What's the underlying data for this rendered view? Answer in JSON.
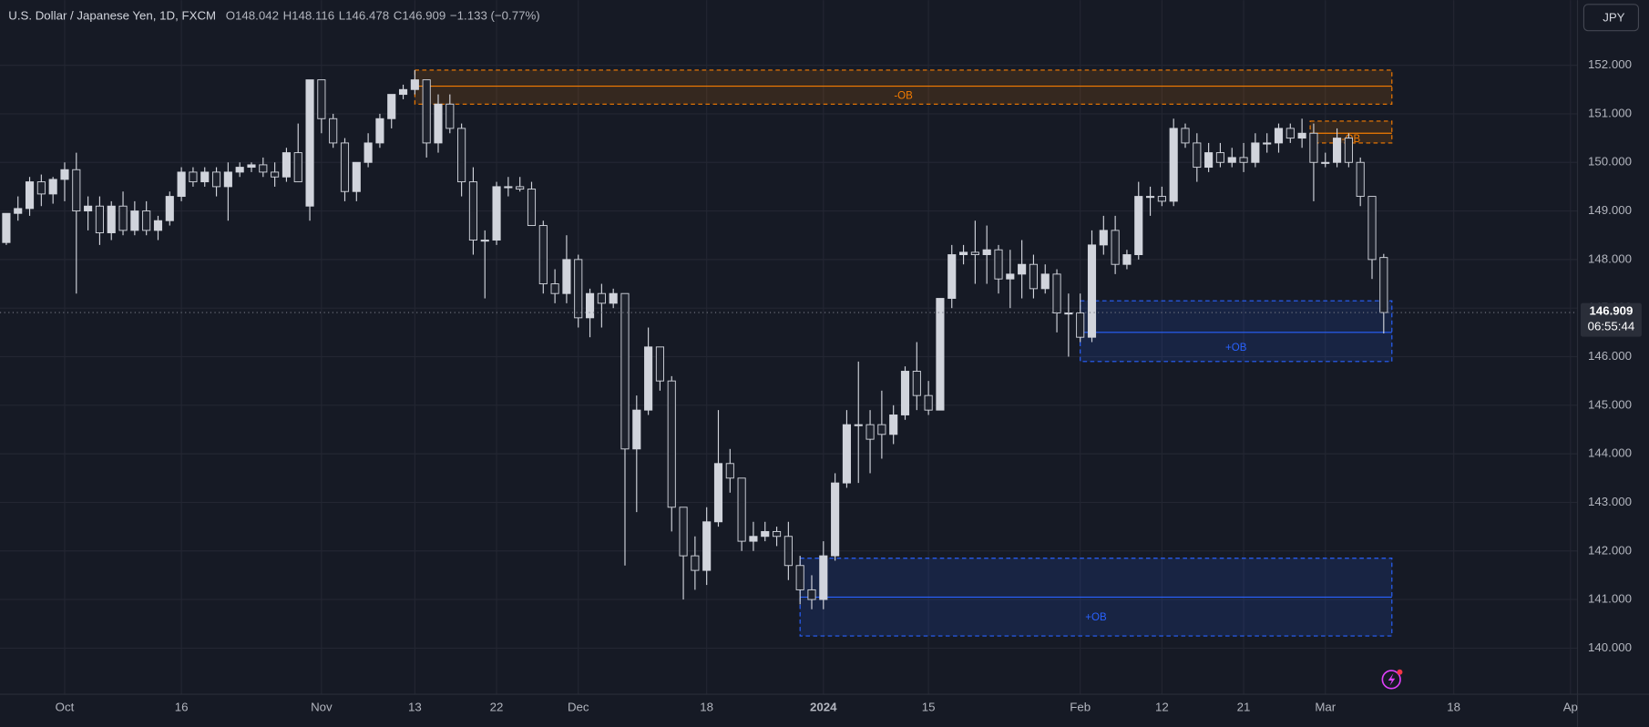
{
  "chart_data": {
    "type": "candlestick",
    "title": "U.S. Dollar / Japanese Yen, 1D, FXCM",
    "header_values": [
      {
        "label": "O",
        "value": 148.042
      },
      {
        "label": "H",
        "value": 148.116
      },
      {
        "label": "L",
        "value": 146.478
      },
      {
        "label": "C",
        "value": 146.909
      }
    ],
    "change": "−1.133 (−0.77%)",
    "currency": "JPY",
    "last_price": 146.909,
    "countdown": "06:55:44",
    "ylim": [
      139.05,
      153.34
    ],
    "yticks": [
      {
        "value": 140,
        "label": "140.000"
      },
      {
        "value": 141,
        "label": "141.000"
      },
      {
        "value": 142,
        "label": "142.000"
      },
      {
        "value": 143,
        "label": "143.000"
      },
      {
        "value": 144,
        "label": "144.000"
      },
      {
        "value": 145,
        "label": "145.000"
      },
      {
        "value": 146,
        "label": "146.000"
      },
      {
        "value": 147,
        "label": "147.000"
      },
      {
        "value": 148,
        "label": "148.000"
      },
      {
        "value": 149,
        "label": "149.000"
      },
      {
        "value": 150,
        "label": "150.000"
      },
      {
        "value": 151,
        "label": "151.000"
      },
      {
        "value": 152,
        "label": "152.000"
      }
    ],
    "xlim": [
      -0.54,
      134.6
    ],
    "xticks": [
      {
        "value": 5,
        "label": "Oct"
      },
      {
        "value": 15,
        "label": "16"
      },
      {
        "value": 27,
        "label": "Nov"
      },
      {
        "value": 35,
        "label": "13"
      },
      {
        "value": 42,
        "label": "22"
      },
      {
        "value": 49,
        "label": "Dec"
      },
      {
        "value": 60,
        "label": "18"
      },
      {
        "value": 70,
        "label": "2024"
      },
      {
        "value": 79,
        "label": "15"
      },
      {
        "value": 92,
        "label": "Feb"
      },
      {
        "value": 99,
        "label": "12"
      },
      {
        "value": 106,
        "label": "21"
      },
      {
        "value": 113,
        "label": "Mar"
      },
      {
        "value": 124,
        "label": "18"
      },
      {
        "value": 134,
        "label": "Ap"
      }
    ],
    "grid": true,
    "up_color": "#d1d4dc",
    "down_color": "#1e222d",
    "ohlc": [
      [
        148.35,
        148.95,
        148.3,
        148.95
      ],
      [
        148.95,
        149.3,
        148.8,
        149.05
      ],
      [
        149.05,
        149.7,
        148.9,
        149.6
      ],
      [
        149.6,
        149.75,
        149.1,
        149.35
      ],
      [
        149.35,
        149.7,
        149.15,
        149.65
      ],
      [
        149.65,
        150.0,
        149.2,
        149.85
      ],
      [
        149.85,
        150.2,
        147.3,
        149.0
      ],
      [
        149.0,
        149.3,
        148.6,
        149.1
      ],
      [
        149.1,
        149.3,
        148.3,
        148.55
      ],
      [
        148.55,
        149.2,
        148.4,
        149.1
      ],
      [
        149.1,
        149.4,
        148.5,
        148.6
      ],
      [
        148.6,
        149.2,
        148.5,
        149.0
      ],
      [
        149.0,
        149.2,
        148.5,
        148.6
      ],
      [
        148.6,
        148.9,
        148.4,
        148.8
      ],
      [
        148.8,
        149.4,
        148.7,
        149.3
      ],
      [
        149.3,
        149.9,
        149.2,
        149.8
      ],
      [
        149.8,
        149.9,
        149.5,
        149.6
      ],
      [
        149.6,
        149.9,
        149.5,
        149.8
      ],
      [
        149.8,
        149.9,
        149.3,
        149.5
      ],
      [
        149.5,
        150.0,
        148.8,
        149.8
      ],
      [
        149.8,
        150.0,
        149.7,
        149.9
      ],
      [
        149.9,
        150.0,
        149.8,
        149.95
      ],
      [
        149.95,
        150.1,
        149.7,
        149.8
      ],
      [
        149.8,
        150.0,
        149.5,
        149.7
      ],
      [
        149.7,
        150.3,
        149.6,
        150.2
      ],
      [
        150.2,
        150.8,
        149.6,
        149.6
      ],
      [
        149.1,
        151.7,
        148.8,
        151.7
      ],
      [
        151.7,
        151.7,
        150.6,
        150.9
      ],
      [
        150.9,
        151.0,
        150.3,
        150.4
      ],
      [
        150.4,
        150.5,
        149.2,
        149.4
      ],
      [
        149.4,
        150.0,
        149.2,
        150.0
      ],
      [
        150.0,
        150.6,
        149.9,
        150.4
      ],
      [
        150.4,
        151.0,
        150.3,
        150.9
      ],
      [
        150.9,
        151.4,
        150.7,
        151.4
      ],
      [
        151.4,
        151.6,
        151.3,
        151.5
      ],
      [
        151.5,
        151.9,
        151.4,
        151.7
      ],
      [
        151.7,
        151.7,
        150.1,
        150.4
      ],
      [
        150.4,
        151.4,
        150.2,
        151.2
      ],
      [
        151.2,
        151.4,
        150.6,
        150.7
      ],
      [
        150.7,
        150.8,
        149.3,
        149.6
      ],
      [
        149.6,
        149.9,
        148.1,
        148.4
      ],
      [
        148.4,
        148.6,
        147.2,
        148.4
      ],
      [
        148.4,
        149.6,
        148.3,
        149.5
      ],
      [
        149.5,
        149.7,
        149.3,
        149.5
      ],
      [
        149.5,
        149.7,
        149.4,
        149.45
      ],
      [
        149.45,
        149.6,
        148.7,
        148.7
      ],
      [
        148.7,
        148.8,
        147.3,
        147.5
      ],
      [
        147.5,
        147.8,
        147.1,
        147.3
      ],
      [
        147.3,
        148.5,
        147.1,
        148.0
      ],
      [
        148.0,
        148.1,
        146.6,
        146.8
      ],
      [
        146.8,
        147.4,
        146.4,
        147.3
      ],
      [
        147.3,
        147.5,
        146.6,
        147.1
      ],
      [
        147.1,
        147.4,
        147.0,
        147.3
      ],
      [
        147.3,
        147.3,
        141.7,
        144.1
      ],
      [
        144.1,
        145.2,
        142.8,
        144.9
      ],
      [
        144.9,
        146.6,
        144.8,
        146.2
      ],
      [
        146.2,
        146.2,
        145.3,
        145.5
      ],
      [
        145.5,
        145.6,
        142.4,
        142.9
      ],
      [
        142.9,
        142.9,
        141.0,
        141.9
      ],
      [
        141.9,
        142.3,
        141.2,
        141.6
      ],
      [
        141.6,
        142.9,
        141.3,
        142.6
      ],
      [
        142.6,
        144.9,
        142.5,
        143.8
      ],
      [
        143.8,
        144.1,
        143.2,
        143.5
      ],
      [
        143.5,
        143.5,
        142.0,
        142.2
      ],
      [
        142.2,
        142.6,
        142.0,
        142.3
      ],
      [
        142.3,
        142.6,
        142.2,
        142.4
      ],
      [
        142.4,
        142.5,
        142.1,
        142.3
      ],
      [
        142.3,
        142.6,
        141.4,
        141.7
      ],
      [
        141.7,
        141.9,
        140.9,
        141.2
      ],
      [
        141.2,
        141.5,
        140.8,
        141.0
      ],
      [
        141.0,
        142.2,
        140.8,
        141.9
      ],
      [
        141.9,
        143.6,
        141.8,
        143.4
      ],
      [
        143.4,
        144.9,
        143.3,
        144.6
      ],
      [
        144.6,
        145.9,
        143.4,
        144.6
      ],
      [
        144.6,
        144.9,
        143.6,
        144.3
      ],
      [
        144.6,
        145.3,
        143.9,
        144.4
      ],
      [
        144.4,
        145.0,
        144.2,
        144.8
      ],
      [
        144.8,
        145.8,
        144.7,
        145.7
      ],
      [
        145.7,
        146.3,
        144.9,
        145.2
      ],
      [
        145.2,
        145.5,
        144.8,
        144.9
      ],
      [
        144.9,
        147.2,
        144.9,
        147.2
      ],
      [
        147.2,
        148.3,
        147.0,
        148.1
      ],
      [
        148.1,
        148.3,
        147.9,
        148.15
      ],
      [
        148.15,
        148.8,
        147.5,
        148.1
      ],
      [
        148.1,
        148.7,
        147.5,
        148.2
      ],
      [
        148.2,
        148.3,
        147.3,
        147.6
      ],
      [
        147.6,
        148.2,
        147.0,
        147.7
      ],
      [
        147.7,
        148.4,
        147.2,
        147.9
      ],
      [
        147.9,
        148.1,
        147.2,
        147.4
      ],
      [
        147.4,
        147.9,
        147.3,
        147.7
      ],
      [
        147.7,
        147.8,
        146.5,
        146.9
      ],
      [
        146.9,
        147.3,
        146.0,
        146.9
      ],
      [
        146.9,
        147.3,
        146.3,
        146.4
      ],
      [
        146.4,
        148.6,
        146.3,
        148.3
      ],
      [
        148.3,
        148.9,
        148.1,
        148.6
      ],
      [
        148.6,
        148.9,
        147.7,
        147.9
      ],
      [
        147.9,
        148.2,
        147.8,
        148.1
      ],
      [
        148.1,
        149.6,
        148.0,
        149.3
      ],
      [
        149.3,
        149.5,
        148.9,
        149.3
      ],
      [
        149.3,
        149.5,
        149.1,
        149.2
      ],
      [
        149.2,
        150.9,
        149.1,
        150.7
      ],
      [
        150.7,
        150.8,
        150.3,
        150.4
      ],
      [
        150.4,
        150.6,
        149.6,
        149.9
      ],
      [
        149.9,
        150.4,
        149.8,
        150.2
      ],
      [
        150.2,
        150.4,
        149.9,
        150.0
      ],
      [
        150.0,
        150.3,
        149.9,
        150.1
      ],
      [
        150.1,
        150.4,
        149.8,
        150.0
      ],
      [
        150.0,
        150.6,
        149.9,
        150.4
      ],
      [
        150.4,
        150.6,
        150.2,
        150.4
      ],
      [
        150.4,
        150.8,
        150.2,
        150.7
      ],
      [
        150.7,
        150.8,
        150.4,
        150.5
      ],
      [
        150.5,
        150.9,
        150.3,
        150.6
      ],
      [
        150.6,
        150.8,
        149.2,
        150.0
      ],
      [
        150.0,
        150.2,
        149.9,
        150.0
      ],
      [
        150.0,
        150.7,
        149.9,
        150.5
      ],
      [
        150.5,
        150.6,
        149.9,
        150.0
      ],
      [
        150.0,
        150.1,
        149.1,
        149.3
      ],
      [
        149.3,
        149.3,
        147.6,
        148.0
      ],
      [
        148.042,
        148.116,
        146.478,
        146.909
      ]
    ],
    "zones": [
      {
        "label": "-OB",
        "x0": 35,
        "x1": 118.7,
        "top": 151.9,
        "mid": 151.57,
        "bottom": 151.2,
        "color": "#f57c00"
      },
      {
        "label": "-OB",
        "x0": 111.7,
        "x1": 118.7,
        "top": 150.85,
        "mid": 150.6,
        "bottom": 150.4,
        "color": "#f57c00"
      },
      {
        "label": "+OB",
        "x0": 92,
        "x1": 118.7,
        "top": 147.15,
        "mid": 146.5,
        "bottom": 145.9,
        "color": "#2962ff"
      },
      {
        "label": "+OB",
        "x0": 68,
        "x1": 118.7,
        "top": 141.85,
        "mid": 141.05,
        "bottom": 140.25,
        "color": "#2962ff"
      }
    ]
  }
}
